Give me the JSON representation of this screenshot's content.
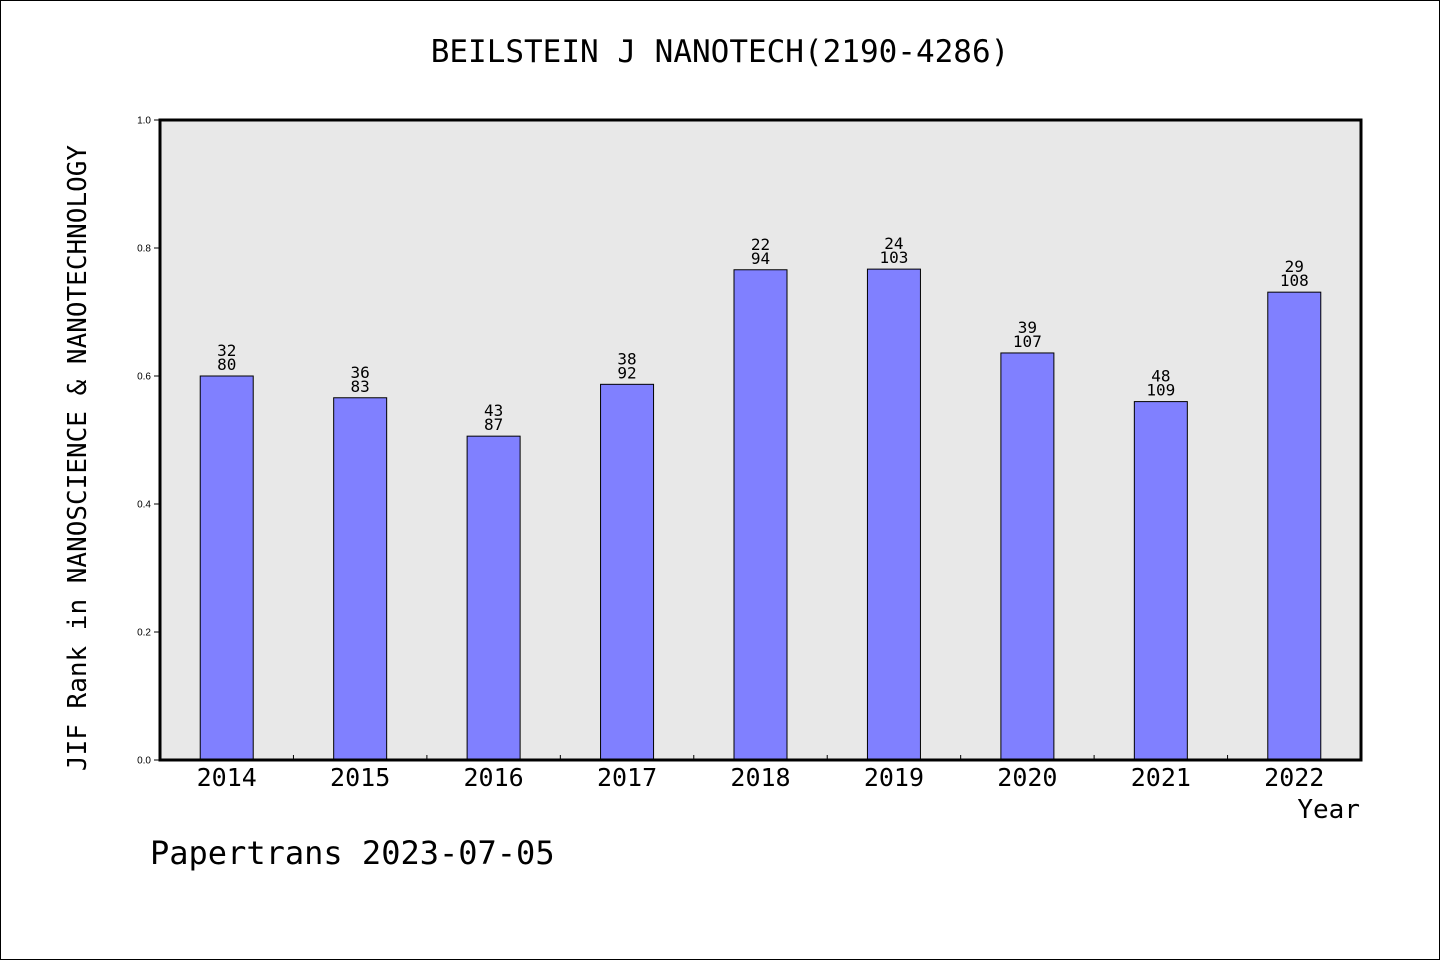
{
  "chart_data": {
    "type": "bar",
    "title": "BEILSTEIN J NANOTECH(2190-4286)",
    "xlabel": "Year",
    "ylabel": "JIF Rank in NANOSCIENCE & NANOTECHNOLOGY",
    "categories": [
      "2014",
      "2015",
      "2016",
      "2017",
      "2018",
      "2019",
      "2020",
      "2021",
      "2022"
    ],
    "values": [
      0.6,
      0.566,
      0.506,
      0.587,
      0.766,
      0.767,
      0.636,
      0.56,
      0.731
    ],
    "rank": [
      "32",
      "36",
      "43",
      "38",
      "22",
      "24",
      "39",
      "48",
      "29"
    ],
    "total": [
      "80",
      "83",
      "87",
      "92",
      "94",
      "103",
      "107",
      "109",
      "108"
    ],
    "ylim": [
      0,
      1.0
    ],
    "yticks": [
      "0.0",
      "0.2",
      "0.4",
      "0.6",
      "0.8",
      "1.0"
    ],
    "grid": false,
    "bar_color": "#8080ff",
    "plot_background": "#e8e8e8"
  },
  "footer": "Papertrans 2023-07-05"
}
